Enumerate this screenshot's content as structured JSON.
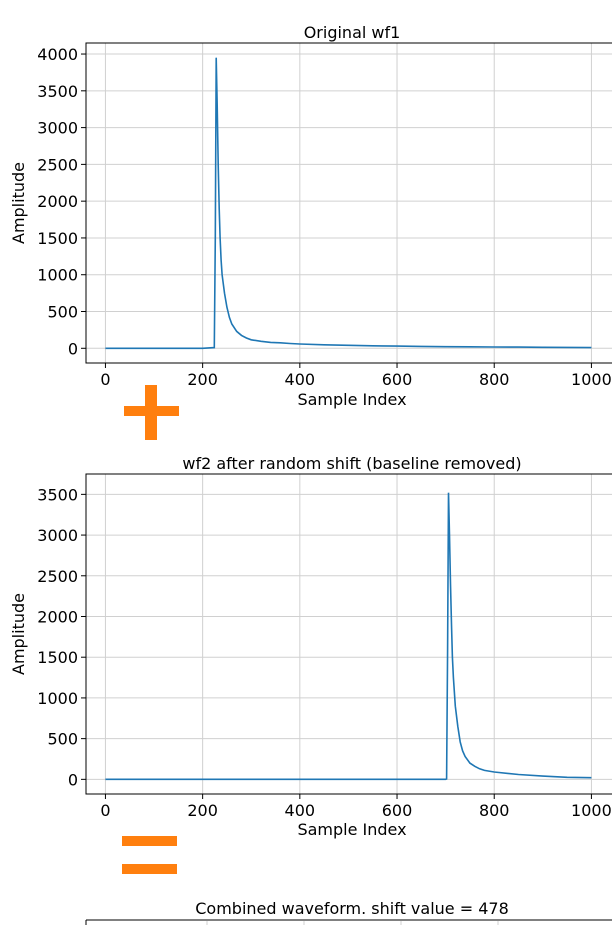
{
  "chart_data": [
    {
      "type": "line",
      "title": "Original wf1",
      "xlabel": "Sample Index",
      "ylabel": "Amplitude",
      "xlim": [
        -40,
        1030
      ],
      "ylim": [
        -200,
        4150
      ],
      "xticks": [
        0,
        200,
        400,
        600,
        800,
        1000
      ],
      "xtick_labels": [
        "0",
        "200",
        "400",
        "600",
        "800",
        "1000"
      ],
      "yticks": [
        0,
        500,
        1000,
        1500,
        2000,
        2500,
        3000,
        3500,
        4000
      ],
      "ytick_labels": [
        "0",
        "500",
        "1000",
        "1500",
        "2000",
        "2500",
        "3000",
        "3500",
        "4000"
      ],
      "grid": true,
      "line_color": "#1f77b4",
      "series": [
        {
          "x": [
            0,
            100,
            200,
            224,
            226,
            228,
            230,
            232,
            234,
            236,
            238,
            240,
            245,
            250,
            255,
            260,
            270,
            280,
            290,
            300,
            320,
            340,
            360,
            380,
            400,
            450,
            500,
            550,
            600,
            650,
            700,
            750,
            800,
            850,
            900,
            950,
            1000
          ],
          "y": [
            0,
            0,
            0,
            10,
            1500,
            3950,
            3300,
            2500,
            1900,
            1500,
            1200,
            1000,
            750,
            560,
            420,
            330,
            230,
            175,
            140,
            115,
            95,
            80,
            75,
            65,
            58,
            48,
            40,
            34,
            30,
            26,
            22,
            20,
            18,
            16,
            14,
            12,
            10
          ]
        }
      ]
    },
    {
      "type": "line",
      "title": "wf2 after random shift (baseline removed)",
      "xlabel": "Sample Index",
      "ylabel": "Amplitude",
      "xlim": [
        -40,
        1030
      ],
      "ylim": [
        -180,
        3750
      ],
      "xticks": [
        0,
        200,
        400,
        600,
        800,
        1000
      ],
      "xtick_labels": [
        "0",
        "200",
        "400",
        "600",
        "800",
        "1000"
      ],
      "yticks": [
        0,
        500,
        1000,
        1500,
        2000,
        2500,
        3000,
        3500
      ],
      "ytick_labels": [
        "0",
        "500",
        "1000",
        "1500",
        "2000",
        "2500",
        "3000",
        "3500"
      ],
      "grid": true,
      "line_color": "#1f77b4",
      "series": [
        {
          "x": [
            0,
            200,
            400,
            600,
            700,
            702,
            704,
            706,
            708,
            710,
            712,
            714,
            716,
            720,
            725,
            730,
            735,
            740,
            750,
            760,
            770,
            780,
            800,
            850,
            900,
            950,
            1000
          ],
          "y": [
            0,
            0,
            0,
            0,
            0,
            5,
            1600,
            3520,
            3000,
            2400,
            1900,
            1500,
            1250,
            900,
            650,
            460,
            350,
            280,
            200,
            160,
            130,
            110,
            90,
            60,
            40,
            25,
            20
          ]
        }
      ]
    },
    {
      "type": "line",
      "title": "Combined waveform. shift value = 478"
    }
  ],
  "operators": {
    "plus": "+",
    "equals": "=",
    "color": "#ff7f0e"
  }
}
